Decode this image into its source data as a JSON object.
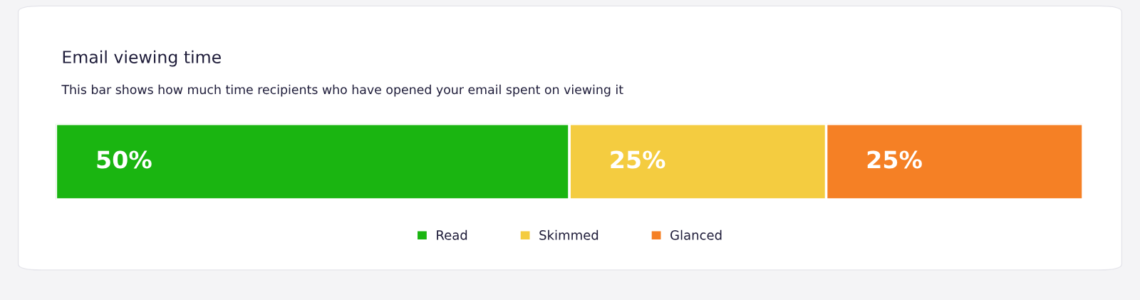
{
  "chart_data": {
    "type": "bar",
    "orientation": "horizontal",
    "stacked": true,
    "title": "Email viewing time",
    "subtitle": "This bar shows how much time recipients who have opened your email spent on viewing it",
    "categories": [
      null
    ],
    "series": [
      {
        "name": "Read",
        "color": "#1ab511",
        "values": [
          50
        ],
        "value_labels": [
          "50%"
        ]
      },
      {
        "name": "Skimmed",
        "color": "#f4cc40",
        "values": [
          25
        ],
        "value_labels": [
          "25%"
        ]
      },
      {
        "name": "Glanced",
        "color": "#f58025",
        "values": [
          25
        ],
        "value_labels": [
          "25%"
        ]
      }
    ],
    "legend": "bottom"
  }
}
